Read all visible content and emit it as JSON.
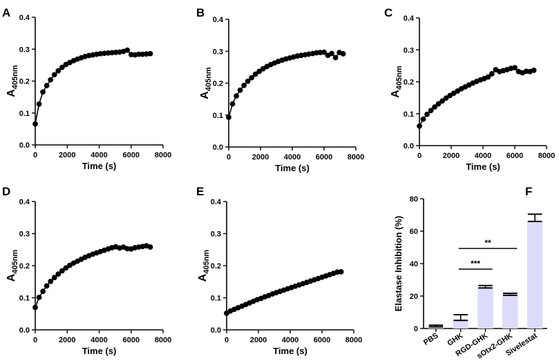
{
  "chart_data": [
    {
      "panel": "A",
      "type": "scatter",
      "fit_line": true,
      "xlabel": "Time (s)",
      "ylabel": "A405nm",
      "xlim": [
        0,
        8000
      ],
      "ylim": [
        0,
        0.4
      ],
      "xticks": [
        0,
        2000,
        4000,
        6000,
        8000
      ],
      "xtick_labels": [
        "0",
        "2000",
        "4000",
        "6000",
        "8000"
      ],
      "yticks": [
        0,
        0.1,
        0.2,
        0.3,
        0.4
      ],
      "ytick_labels": [
        "0.0",
        "0.1",
        "0.2",
        "0.3",
        "0.4"
      ],
      "x": [
        0,
        240,
        480,
        720,
        960,
        1200,
        1440,
        1680,
        1920,
        2160,
        2400,
        2640,
        2880,
        3120,
        3360,
        3600,
        3840,
        4080,
        4320,
        4560,
        4800,
        5040,
        5280,
        5520,
        5760,
        6000,
        6240,
        6480,
        6720,
        6960,
        7200
      ],
      "y": [
        0.066,
        0.128,
        0.166,
        0.186,
        0.204,
        0.22,
        0.232,
        0.243,
        0.252,
        0.258,
        0.264,
        0.269,
        0.273,
        0.277,
        0.28,
        0.282,
        0.284,
        0.286,
        0.287,
        0.288,
        0.289,
        0.29,
        0.291,
        0.293,
        0.297,
        0.283,
        0.282,
        0.284,
        0.284,
        0.285,
        0.286
      ]
    },
    {
      "panel": "B",
      "type": "scatter",
      "fit_line": true,
      "xlabel": "Time (s)",
      "ylabel": "A405nm",
      "xlim": [
        0,
        8000
      ],
      "ylim": [
        0,
        0.4
      ],
      "xticks": [
        0,
        2000,
        4000,
        6000,
        8000
      ],
      "xtick_labels": [
        "0",
        "2000",
        "4000",
        "6000",
        "8000"
      ],
      "yticks": [
        0,
        0.1,
        0.2,
        0.3,
        0.4
      ],
      "ytick_labels": [
        "0.0",
        "0.1",
        "0.2",
        "0.3",
        "0.4"
      ],
      "x": [
        0,
        240,
        480,
        720,
        960,
        1200,
        1440,
        1680,
        1920,
        2160,
        2400,
        2640,
        2880,
        3120,
        3360,
        3600,
        3840,
        4080,
        4320,
        4560,
        4800,
        5040,
        5280,
        5520,
        5760,
        6000,
        6240,
        6480,
        6720,
        6960,
        7200
      ],
      "y": [
        0.093,
        0.135,
        0.16,
        0.178,
        0.193,
        0.206,
        0.217,
        0.228,
        0.237,
        0.245,
        0.252,
        0.258,
        0.263,
        0.268,
        0.272,
        0.276,
        0.279,
        0.282,
        0.285,
        0.287,
        0.289,
        0.291,
        0.293,
        0.295,
        0.296,
        0.297,
        0.287,
        0.293,
        0.28,
        0.296,
        0.292
      ]
    },
    {
      "panel": "C",
      "type": "scatter",
      "fit_line": true,
      "xlabel": "Time (s)",
      "ylabel": "A405nm",
      "xlim": [
        0,
        8000
      ],
      "ylim": [
        0,
        0.4
      ],
      "xticks": [
        0,
        2000,
        4000,
        6000,
        8000
      ],
      "xtick_labels": [
        "0",
        "2000",
        "4000",
        "6000",
        "8000"
      ],
      "yticks": [
        0,
        0.1,
        0.2,
        0.3,
        0.4
      ],
      "ytick_labels": [
        "0.0",
        "0.1",
        "0.2",
        "0.3",
        "0.4"
      ],
      "x": [
        0,
        240,
        480,
        720,
        960,
        1200,
        1440,
        1680,
        1920,
        2160,
        2400,
        2640,
        2880,
        3120,
        3360,
        3600,
        3840,
        4080,
        4320,
        4560,
        4800,
        5040,
        5280,
        5520,
        5760,
        6000,
        6240,
        6480,
        6720,
        6960,
        7200
      ],
      "y": [
        0.061,
        0.083,
        0.098,
        0.11,
        0.121,
        0.131,
        0.14,
        0.149,
        0.157,
        0.164,
        0.171,
        0.178,
        0.184,
        0.19,
        0.196,
        0.201,
        0.206,
        0.21,
        0.215,
        0.225,
        0.238,
        0.232,
        0.235,
        0.238,
        0.242,
        0.244,
        0.232,
        0.228,
        0.233,
        0.232,
        0.236
      ]
    },
    {
      "panel": "D",
      "type": "scatter",
      "fit_line": true,
      "xlabel": "Time (s)",
      "ylabel": "A405nm",
      "xlim": [
        0,
        8000
      ],
      "ylim": [
        0,
        0.4
      ],
      "xticks": [
        0,
        2000,
        4000,
        6000,
        8000
      ],
      "xtick_labels": [
        "0",
        "2000",
        "4000",
        "6000",
        "8000"
      ],
      "yticks": [
        0,
        0.1,
        0.2,
        0.3,
        0.4
      ],
      "ytick_labels": [
        "0.0",
        "0.1",
        "0.2",
        "0.3",
        "0.4"
      ],
      "x": [
        0,
        240,
        480,
        720,
        960,
        1200,
        1440,
        1680,
        1920,
        2160,
        2400,
        2640,
        2880,
        3120,
        3360,
        3600,
        3840,
        4080,
        4320,
        4560,
        4800,
        5040,
        5280,
        5520,
        5760,
        6000,
        6240,
        6480,
        6720,
        6960,
        7200
      ],
      "y": [
        0.07,
        0.101,
        0.12,
        0.137,
        0.151,
        0.163,
        0.174,
        0.184,
        0.193,
        0.201,
        0.208,
        0.214,
        0.22,
        0.226,
        0.231,
        0.236,
        0.24,
        0.244,
        0.248,
        0.252,
        0.256,
        0.259,
        0.255,
        0.258,
        0.253,
        0.252,
        0.256,
        0.258,
        0.26,
        0.262,
        0.258
      ]
    },
    {
      "panel": "E",
      "type": "scatter",
      "fit_line": true,
      "xlabel": "Time (s)",
      "ylabel": "A405nm",
      "xlim": [
        0,
        8000
      ],
      "ylim": [
        0,
        0.4
      ],
      "xticks": [
        0,
        2000,
        4000,
        6000,
        8000
      ],
      "xtick_labels": [
        "0",
        "2000",
        "4000",
        "6000",
        "8000"
      ],
      "yticks": [
        0,
        0.1,
        0.2,
        0.3,
        0.4
      ],
      "ytick_labels": [
        "0.0",
        "0.1",
        "0.2",
        "0.3",
        "0.4"
      ],
      "x": [
        0,
        240,
        480,
        720,
        960,
        1200,
        1440,
        1680,
        1920,
        2160,
        2400,
        2640,
        2880,
        3120,
        3360,
        3600,
        3840,
        4080,
        4320,
        4560,
        4800,
        5040,
        5280,
        5520,
        5760,
        6000,
        6240,
        6480,
        6720,
        6960,
        7200
      ],
      "y": [
        0.052,
        0.059,
        0.064,
        0.069,
        0.074,
        0.079,
        0.084,
        0.089,
        0.094,
        0.098,
        0.103,
        0.107,
        0.112,
        0.116,
        0.12,
        0.124,
        0.128,
        0.132,
        0.136,
        0.14,
        0.144,
        0.148,
        0.152,
        0.156,
        0.16,
        0.164,
        0.168,
        0.172,
        0.176,
        0.18,
        0.181
      ]
    },
    {
      "panel": "F",
      "type": "bar",
      "ylabel": "Elastase Inhibition (%)",
      "ylim": [
        0,
        80
      ],
      "yticks": [
        0,
        20,
        40,
        60,
        80
      ],
      "ytick_labels": [
        "0",
        "20",
        "40",
        "60",
        "80"
      ],
      "categories": [
        "PBS",
        "GHK",
        "RGD-GHK",
        "sOtx2-GHK",
        "Sivelestat"
      ],
      "values": [
        1,
        5,
        25,
        20.5,
        66
      ],
      "errors": [
        1,
        3.5,
        1.5,
        1.2,
        4.5
      ],
      "bar_color": "#dcdcfa",
      "significance": [
        {
          "from": "GHK",
          "to": "RGD-GHK",
          "label": "***"
        },
        {
          "from": "GHK",
          "to": "sOtx2-GHK",
          "label": "**"
        }
      ]
    }
  ]
}
